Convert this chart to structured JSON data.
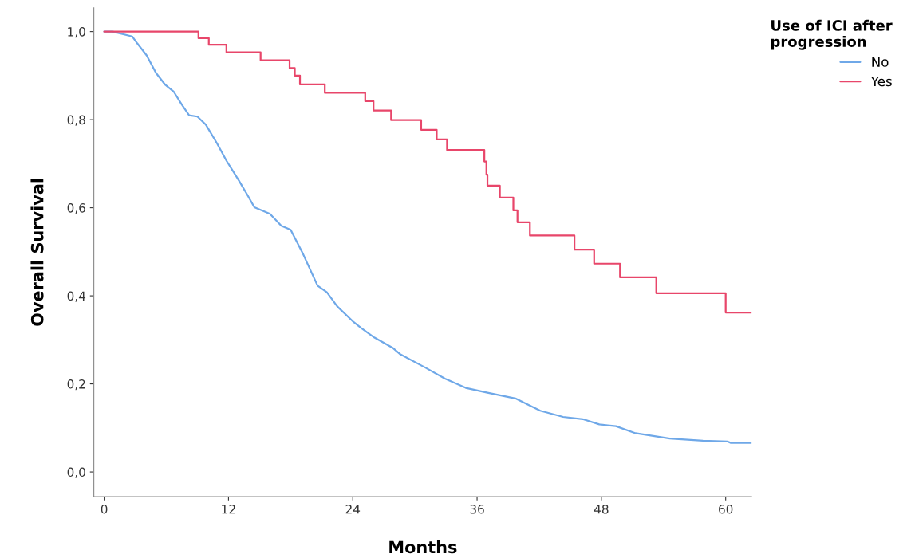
{
  "chart_data": {
    "type": "step",
    "xlabel": "Months",
    "ylabel": "Overall Survival",
    "legend_title": "Use of ICI after\nprogression",
    "legend": "top right",
    "grid": false,
    "line_style": "solid",
    "marker": "none",
    "xlim": [
      -1,
      62.5
    ],
    "xticks": [
      0,
      12,
      24,
      36,
      48,
      60
    ],
    "ylim": [
      -0.056,
      1.054
    ],
    "yticks": [
      {
        "value": 0,
        "label": "0,0"
      },
      {
        "value": 0.2,
        "label": "0,2"
      },
      {
        "value": 0.4,
        "label": "0,4"
      },
      {
        "value": 0.6,
        "label": "0,6"
      },
      {
        "value": 0.8,
        "label": "0,8"
      },
      {
        "value": 1.0,
        "label": "1,0"
      }
    ],
    "series": [
      {
        "name": "No",
        "type": "line",
        "color": "#6fa8e8",
        "x": [
          0,
          0.8,
          2.7,
          3.2,
          4.1,
          5.0,
          5.9,
          6.7,
          7.5,
          8.2,
          9.0,
          9.8,
          10.9,
          11.8,
          13.0,
          13.9,
          14.5,
          16.0,
          17.1,
          18.0,
          19.2,
          20.6,
          21.5,
          22.5,
          24.1,
          24.8,
          26.1,
          27.9,
          28.6,
          31.0,
          32.9,
          34.9,
          37.0,
          39.7,
          42.1,
          44.3,
          46.2,
          47.8,
          49.4,
          51.3,
          54.6,
          57.8,
          60.2,
          60.5,
          62.5
        ],
        "values": [
          1.0,
          1.0,
          0.989,
          0.973,
          0.946,
          0.906,
          0.879,
          0.864,
          0.834,
          0.81,
          0.807,
          0.789,
          0.746,
          0.707,
          0.662,
          0.626,
          0.601,
          0.586,
          0.559,
          0.55,
          0.495,
          0.423,
          0.408,
          0.376,
          0.34,
          0.327,
          0.305,
          0.281,
          0.267,
          0.237,
          0.212,
          0.191,
          0.18,
          0.167,
          0.139,
          0.125,
          0.12,
          0.108,
          0.104,
          0.088,
          0.076,
          0.071,
          0.069,
          0.066,
          0.066
        ]
      },
      {
        "name": "Yes",
        "color": "#e8466a",
        "x": [
          0,
          9.1,
          10.1,
          11.8,
          15.1,
          17.9,
          18.4,
          18.9,
          21.3,
          25.2,
          26.0,
          27.7,
          30.6,
          32.1,
          33.1,
          36.7,
          36.9,
          37.0,
          38.2,
          39.5,
          39.9,
          41.1,
          45.4,
          47.3,
          49.8,
          53.3,
          60.0,
          62.5
        ],
        "values": [
          1.0,
          0.985,
          0.97,
          0.953,
          0.935,
          0.917,
          0.9,
          0.88,
          0.861,
          0.842,
          0.821,
          0.799,
          0.777,
          0.755,
          0.731,
          0.705,
          0.675,
          0.65,
          0.623,
          0.594,
          0.567,
          0.537,
          0.505,
          0.473,
          0.442,
          0.406,
          0.362,
          0.362
        ]
      }
    ]
  }
}
